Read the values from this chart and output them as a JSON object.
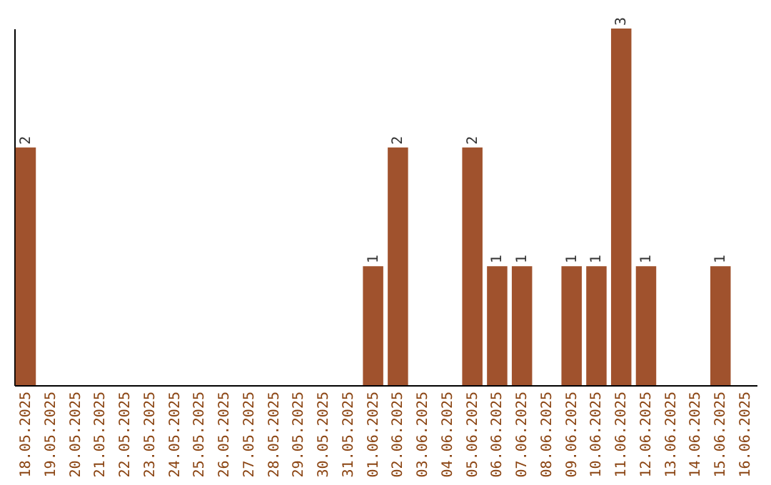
{
  "chart_data": {
    "type": "bar",
    "categories": [
      "18.05.2025",
      "19.05.2025",
      "20.05.2025",
      "21.05.2025",
      "22.05.2025",
      "23.05.2025",
      "24.05.2025",
      "25.05.2025",
      "26.05.2025",
      "27.05.2025",
      "28.05.2025",
      "29.05.2025",
      "30.05.2025",
      "31.05.2025",
      "01.06.2025",
      "02.06.2025",
      "03.06.2025",
      "04.06.2025",
      "05.06.2025",
      "06.06.2025",
      "07.06.2025",
      "08.06.2025",
      "09.06.2025",
      "10.06.2025",
      "11.06.2025",
      "12.06.2025",
      "13.06.2025",
      "14.06.2025",
      "15.06.2025",
      "16.06.2025"
    ],
    "values": [
      2,
      0,
      0,
      0,
      0,
      0,
      0,
      0,
      0,
      0,
      0,
      0,
      0,
      0,
      1,
      2,
      0,
      0,
      2,
      1,
      1,
      0,
      1,
      1,
      3,
      1,
      0,
      0,
      1,
      0
    ],
    "value_labels": [
      "2",
      null,
      null,
      null,
      null,
      null,
      null,
      null,
      null,
      null,
      null,
      null,
      null,
      null,
      "1",
      "2",
      null,
      null,
      "2",
      "1",
      "1",
      null,
      "1",
      "1",
      "3",
      "1",
      null,
      null,
      "1",
      null
    ],
    "color": "#a0522d"
  }
}
